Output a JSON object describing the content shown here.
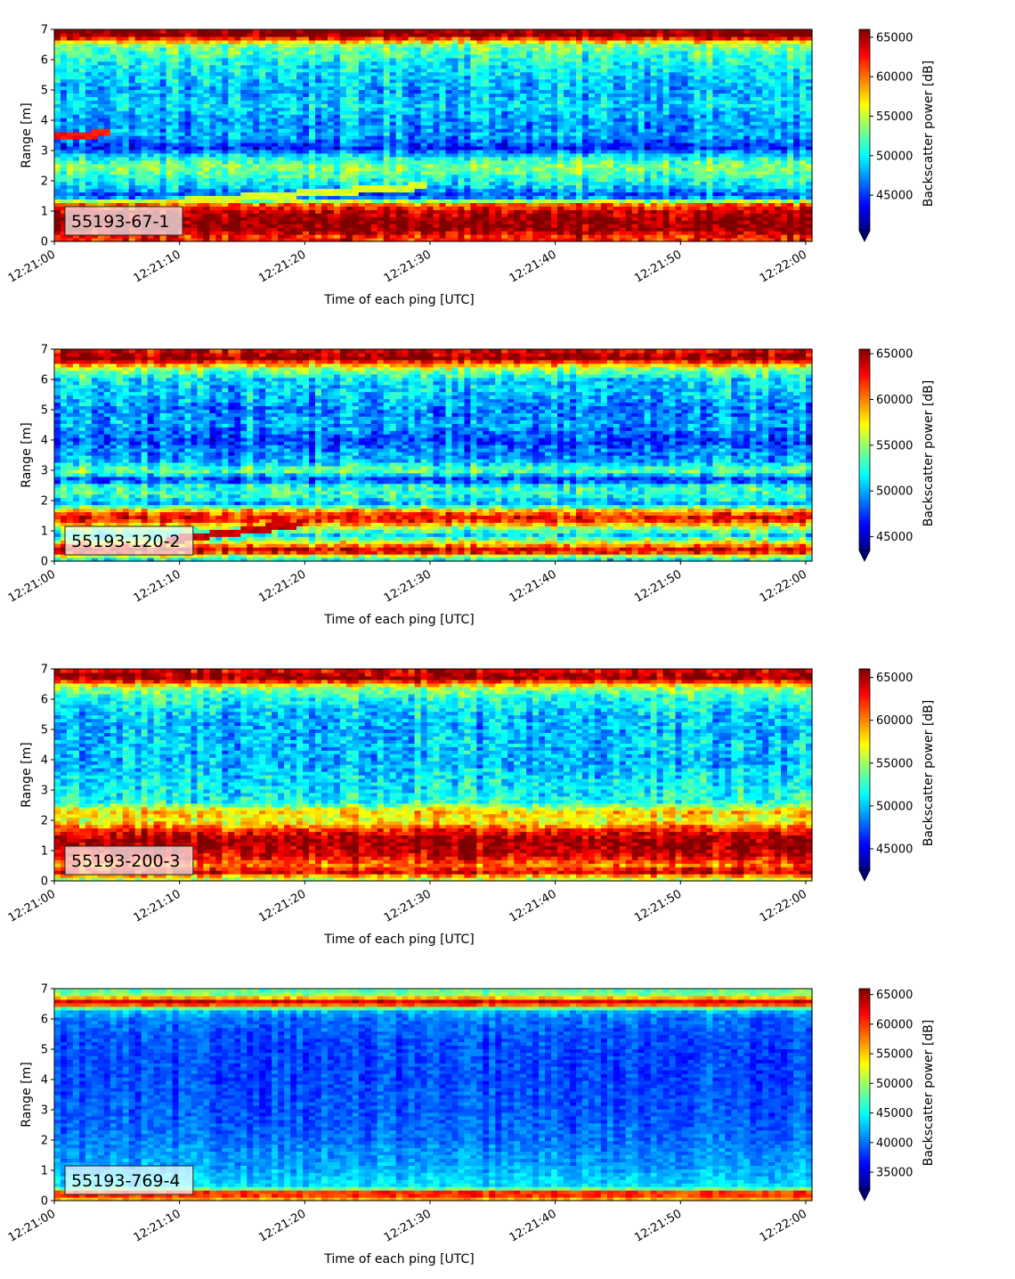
{
  "figure": {
    "panel_count": 4
  },
  "chart_data": [
    {
      "type": "heatmap",
      "label": "55193-67-1",
      "xlabel": "Time of each ping [UTC]",
      "ylabel": "Range [m]",
      "colorbar_label": "Backscatter power [dB]",
      "colormap": "jet",
      "xlim": [
        "12:21:00",
        "12:22:00"
      ],
      "xticks": [
        "12:21:00",
        "12:21:10",
        "12:21:20",
        "12:21:30",
        "12:21:40",
        "12:21:50",
        "12:22:00"
      ],
      "ylim": [
        0,
        7
      ],
      "yticks": [
        "0",
        "1",
        "2",
        "3",
        "4",
        "5",
        "6",
        "7"
      ],
      "color_range": [
        40500,
        66000
      ],
      "colorbar_ticks": [
        "45000",
        "50000",
        "55000",
        "60000",
        "65000"
      ],
      "colorbar_extend": "min",
      "profile": [
        {
          "range": 0.15,
          "value": 62000
        },
        {
          "range": 0.4,
          "value": 65500
        },
        {
          "range": 0.7,
          "value": 66000
        },
        {
          "range": 1.0,
          "value": 64500
        },
        {
          "range": 1.25,
          "value": 60000
        },
        {
          "range": 1.5,
          "value": 45000
        },
        {
          "range": 1.8,
          "value": 49000
        },
        {
          "range": 2.2,
          "value": 52000
        },
        {
          "range": 2.5,
          "value": 53500
        },
        {
          "range": 2.8,
          "value": 50000
        },
        {
          "range": 3.1,
          "value": 44500
        },
        {
          "range": 3.5,
          "value": 48000
        },
        {
          "range": 4.0,
          "value": 47500
        },
        {
          "range": 4.5,
          "value": 49500
        },
        {
          "range": 5.0,
          "value": 48000
        },
        {
          "range": 5.5,
          "value": 49500
        },
        {
          "range": 6.0,
          "value": 50500
        },
        {
          "range": 6.5,
          "value": 53500
        },
        {
          "range": 6.8,
          "value": 66000
        },
        {
          "range": 7.0,
          "value": 66000
        }
      ],
      "noise": 4500,
      "features": [
        {
          "kind": "target",
          "t0": 0,
          "r0": 3.45,
          "t1": 4.5,
          "r1": 3.6,
          "value": 62500
        },
        {
          "kind": "target",
          "t0": 7,
          "r0": 1.25,
          "t1": 30,
          "r1": 1.85,
          "value": 55500
        }
      ]
    },
    {
      "type": "heatmap",
      "label": "55193-120-2",
      "xlabel": "Time of each ping [UTC]",
      "ylabel": "Range [m]",
      "colorbar_label": "Backscatter power [dB]",
      "colormap": "jet",
      "xlim": [
        "12:21:00",
        "12:22:00"
      ],
      "xticks": [
        "12:21:00",
        "12:21:10",
        "12:21:20",
        "12:21:30",
        "12:21:40",
        "12:21:50",
        "12:22:00"
      ],
      "ylim": [
        0,
        7
      ],
      "yticks": [
        "0",
        "1",
        "2",
        "3",
        "4",
        "5",
        "6",
        "7"
      ],
      "color_range": [
        43500,
        65500
      ],
      "colorbar_ticks": [
        "45000",
        "50000",
        "55000",
        "60000",
        "65000"
      ],
      "colorbar_extend": "min",
      "profile": [
        {
          "range": 0.1,
          "value": 52000
        },
        {
          "range": 0.35,
          "value": 65000
        },
        {
          "range": 0.6,
          "value": 58000
        },
        {
          "range": 0.85,
          "value": 51000
        },
        {
          "range": 1.1,
          "value": 55000
        },
        {
          "range": 1.4,
          "value": 63500
        },
        {
          "range": 1.65,
          "value": 60000
        },
        {
          "range": 1.9,
          "value": 50000
        },
        {
          "range": 2.2,
          "value": 53000
        },
        {
          "range": 2.5,
          "value": 52500
        },
        {
          "range": 2.7,
          "value": 47000
        },
        {
          "range": 3.0,
          "value": 54500
        },
        {
          "range": 3.3,
          "value": 50000
        },
        {
          "range": 3.7,
          "value": 49000
        },
        {
          "range": 4.0,
          "value": 47500
        },
        {
          "range": 4.5,
          "value": 50000
        },
        {
          "range": 5.0,
          "value": 49000
        },
        {
          "range": 5.5,
          "value": 50500
        },
        {
          "range": 6.0,
          "value": 51000
        },
        {
          "range": 6.4,
          "value": 56000
        },
        {
          "range": 6.7,
          "value": 65500
        },
        {
          "range": 7.0,
          "value": 63000
        }
      ],
      "noise": 4200,
      "features": [
        {
          "kind": "target",
          "t0": 9,
          "r0": 0.7,
          "t1": 20,
          "r1": 1.25,
          "value": 64000
        }
      ]
    },
    {
      "type": "heatmap",
      "label": "55193-200-3",
      "xlabel": "Time of each ping [UTC]",
      "ylabel": "Range [m]",
      "colorbar_label": "Backscatter power [dB]",
      "colormap": "jet",
      "xlim": [
        "12:21:00",
        "12:22:00"
      ],
      "xticks": [
        "12:21:00",
        "12:21:10",
        "12:21:20",
        "12:21:30",
        "12:21:40",
        "12:21:50",
        "12:22:00"
      ],
      "ylim": [
        0,
        7
      ],
      "yticks": [
        "0",
        "1",
        "2",
        "3",
        "4",
        "5",
        "6",
        "7"
      ],
      "color_range": [
        42500,
        66000
      ],
      "colorbar_ticks": [
        "45000",
        "50000",
        "55000",
        "60000",
        "65000"
      ],
      "colorbar_extend": "min",
      "profile": [
        {
          "range": 0.1,
          "value": 56000
        },
        {
          "range": 0.3,
          "value": 64000
        },
        {
          "range": 0.55,
          "value": 60000
        },
        {
          "range": 0.8,
          "value": 63500
        },
        {
          "range": 1.1,
          "value": 65000
        },
        {
          "range": 1.4,
          "value": 65500
        },
        {
          "range": 1.7,
          "value": 62000
        },
        {
          "range": 2.0,
          "value": 56500
        },
        {
          "range": 2.3,
          "value": 58500
        },
        {
          "range": 2.6,
          "value": 52000
        },
        {
          "range": 3.0,
          "value": 51000
        },
        {
          "range": 3.5,
          "value": 50500
        },
        {
          "range": 4.0,
          "value": 49500
        },
        {
          "range": 4.5,
          "value": 50000
        },
        {
          "range": 5.0,
          "value": 49500
        },
        {
          "range": 5.5,
          "value": 50000
        },
        {
          "range": 6.0,
          "value": 51500
        },
        {
          "range": 6.4,
          "value": 55000
        },
        {
          "range": 6.7,
          "value": 65500
        },
        {
          "range": 7.0,
          "value": 63500
        }
      ],
      "noise": 4300,
      "features": []
    },
    {
      "type": "heatmap",
      "label": "55193-769-4",
      "xlabel": "Time of each ping [UTC]",
      "ylabel": "Range [m]",
      "colorbar_label": "Backscatter power [dB]",
      "colormap": "jet",
      "xlim": [
        "12:21:00",
        "12:22:00"
      ],
      "xticks": [
        "12:21:00",
        "12:21:10",
        "12:21:20",
        "12:21:30",
        "12:21:40",
        "12:21:50",
        "12:22:00"
      ],
      "ylim": [
        0,
        7
      ],
      "yticks": [
        "0",
        "1",
        "2",
        "3",
        "4",
        "5",
        "6",
        "7"
      ],
      "color_range": [
        32000,
        66000
      ],
      "colorbar_ticks": [
        "35000",
        "40000",
        "45000",
        "50000",
        "55000",
        "60000",
        "65000"
      ],
      "colorbar_extend": "min",
      "profile": [
        {
          "range": 0.1,
          "value": 56000
        },
        {
          "range": 0.25,
          "value": 64000
        },
        {
          "range": 0.45,
          "value": 44000
        },
        {
          "range": 0.8,
          "value": 43000
        },
        {
          "range": 1.2,
          "value": 41500
        },
        {
          "range": 1.6,
          "value": 41000
        },
        {
          "range": 2.0,
          "value": 40000
        },
        {
          "range": 2.5,
          "value": 39500
        },
        {
          "range": 3.0,
          "value": 39000
        },
        {
          "range": 3.5,
          "value": 39000
        },
        {
          "range": 4.0,
          "value": 38500
        },
        {
          "range": 4.5,
          "value": 38500
        },
        {
          "range": 5.0,
          "value": 38500
        },
        {
          "range": 5.5,
          "value": 39000
        },
        {
          "range": 6.0,
          "value": 40000
        },
        {
          "range": 6.3,
          "value": 42500
        },
        {
          "range": 6.55,
          "value": 65500
        },
        {
          "range": 6.8,
          "value": 50000
        },
        {
          "range": 7.0,
          "value": 47000
        }
      ],
      "noise": 3200,
      "features": []
    }
  ]
}
